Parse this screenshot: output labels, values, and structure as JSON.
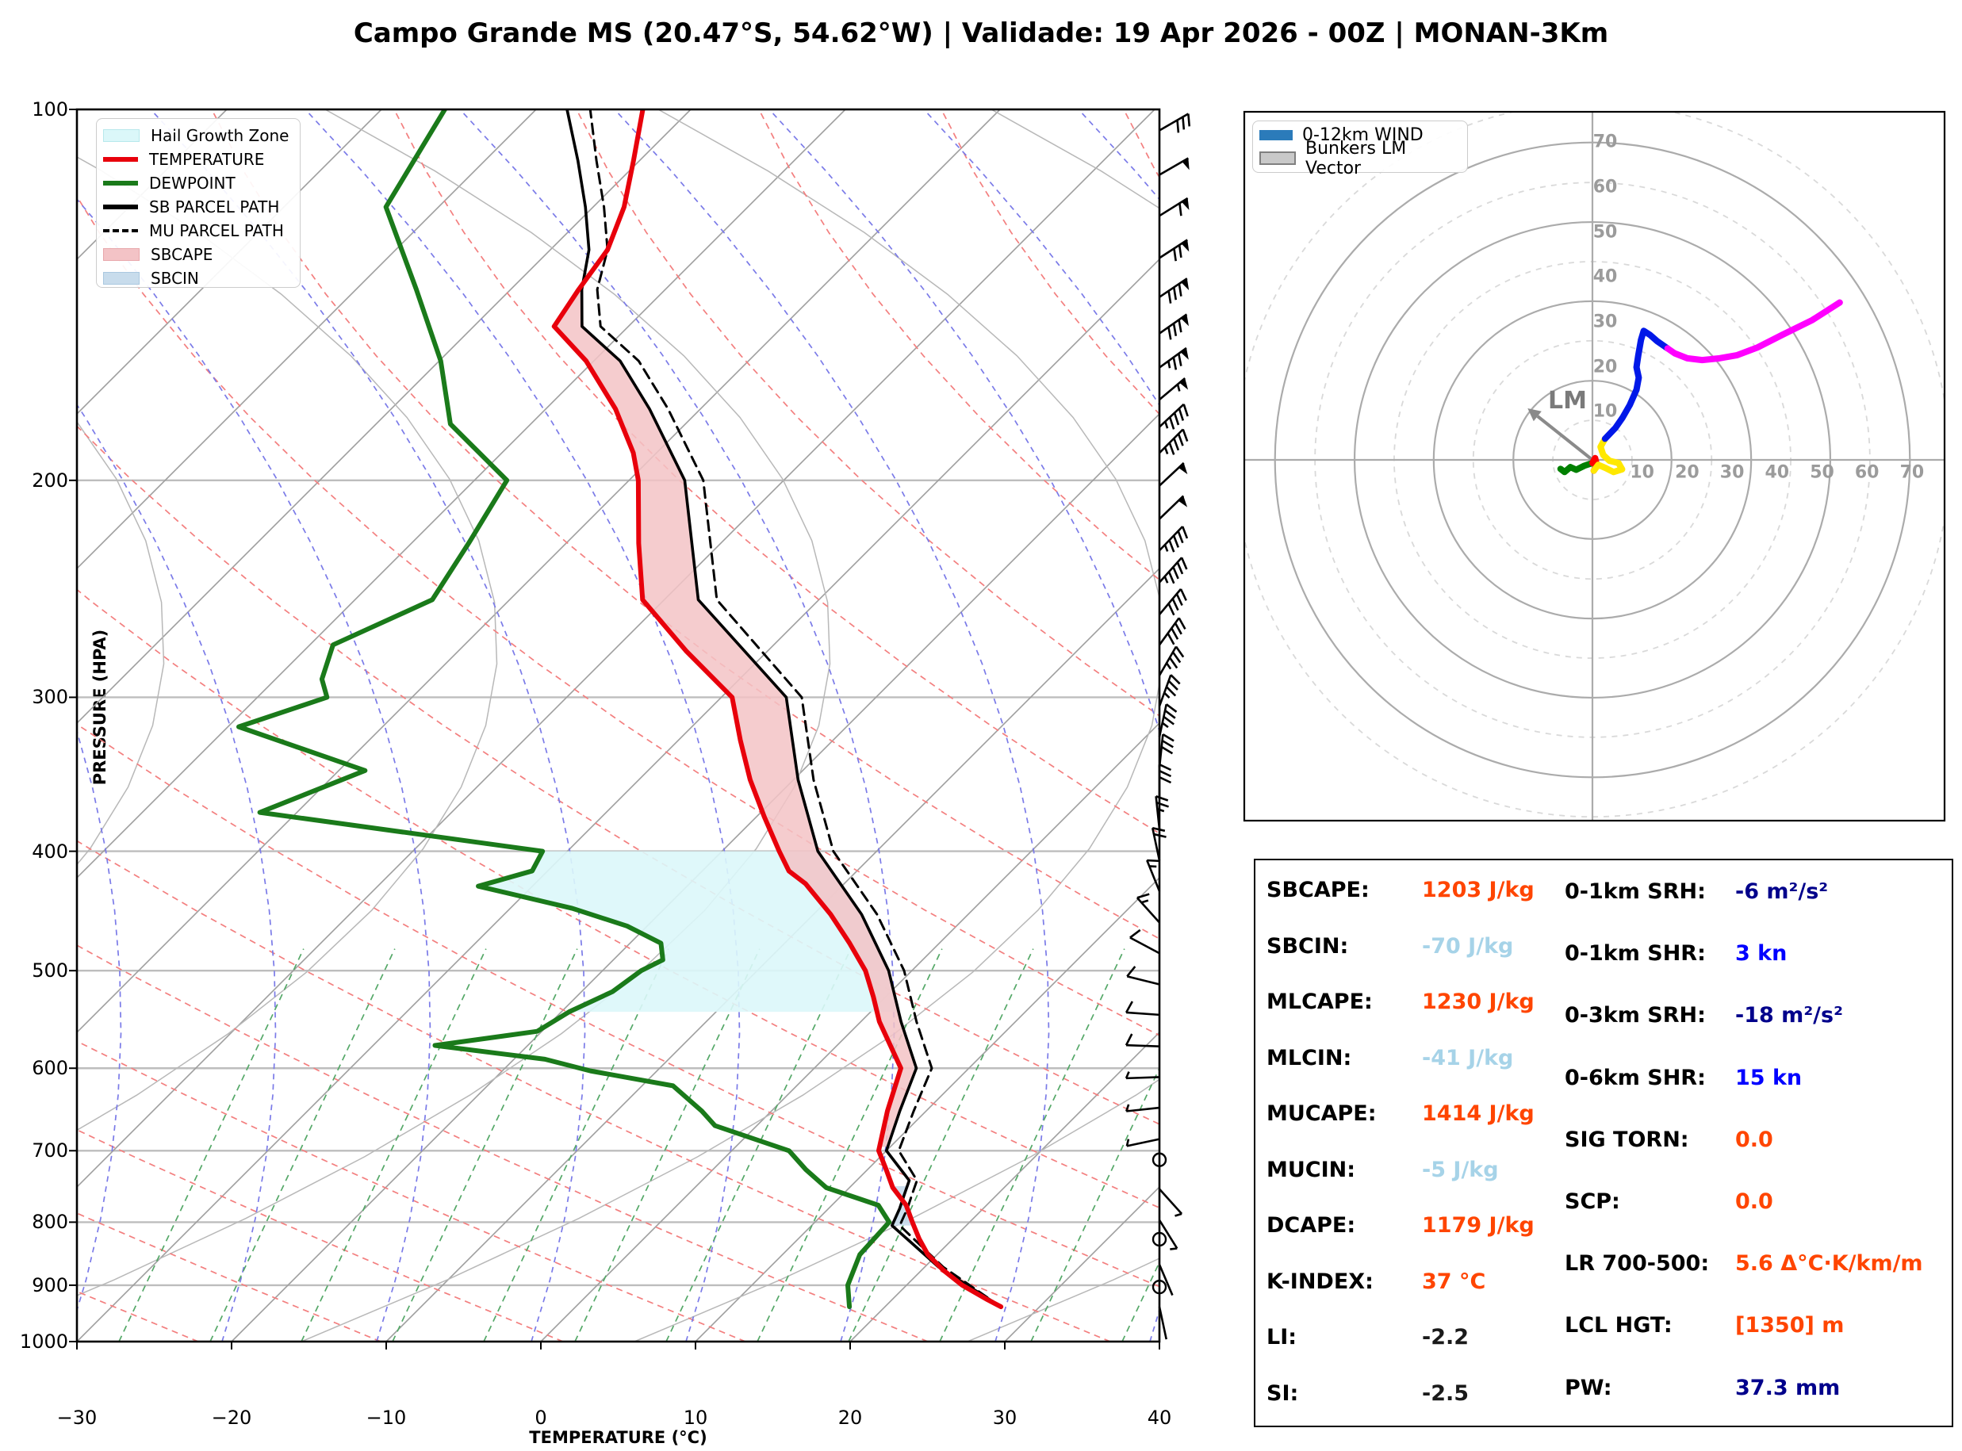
{
  "chart_data": {
    "type": "skewt-sounding",
    "title": "Campo Grande MS (20.47°S, 54.62°W) | Validade: 19 Apr 2026 - 00Z | MONAN-3Km",
    "skewt": {
      "xlabel": "TEMPERATURE (°C)",
      "ylabel": "PRESSURE (HPA)",
      "xlim": [
        -30,
        40
      ],
      "pressure_ticks": [
        100,
        200,
        300,
        400,
        500,
        600,
        700,
        800,
        900,
        1000
      ],
      "temp_ticks": [
        -30,
        -20,
        -10,
        0,
        10,
        20,
        30,
        40
      ],
      "legend": [
        {
          "label": "Hail Growth Zone",
          "type": "patch",
          "color": "#dbf7f9",
          "border": "#b7e8ec"
        },
        {
          "label": "TEMPERATURE",
          "type": "line",
          "color": "#e8000b"
        },
        {
          "label": "DEWPOINT",
          "type": "line",
          "color": "#1a7a1a"
        },
        {
          "label": "SB PARCEL PATH",
          "type": "line",
          "color": "#000000"
        },
        {
          "label": "MU PARCEL PATH",
          "type": "dash",
          "color": "#000000"
        },
        {
          "label": "SBCAPE",
          "type": "patch",
          "color": "#f3c3c6",
          "border": "#e8a7ab"
        },
        {
          "label": "SBCIN",
          "type": "patch",
          "color": "#c8dcec",
          "border": "#aac8e0"
        }
      ],
      "temperature_profile": [
        [
          937,
          27.5
        ],
        [
          925,
          26.2
        ],
        [
          900,
          23.6
        ],
        [
          875,
          21.4
        ],
        [
          850,
          19.4
        ],
        [
          825,
          17.8
        ],
        [
          800,
          16.3
        ],
        [
          775,
          14.8
        ],
        [
          750,
          12.8
        ],
        [
          725,
          11.2
        ],
        [
          700,
          9.5
        ],
        [
          650,
          7.5
        ],
        [
          600,
          5.6
        ],
        [
          550,
          1.2
        ],
        [
          525,
          -0.8
        ],
        [
          500,
          -3.0
        ],
        [
          475,
          -5.8
        ],
        [
          450,
          -8.9
        ],
        [
          425,
          -12.5
        ],
        [
          415,
          -14.4
        ],
        [
          400,
          -16.3
        ],
        [
          375,
          -19.5
        ],
        [
          350,
          -22.8
        ],
        [
          325,
          -26.0
        ],
        [
          300,
          -29.3
        ],
        [
          275,
          -35.3
        ],
        [
          250,
          -41.4
        ],
        [
          225,
          -45.3
        ],
        [
          200,
          -49.4
        ],
        [
          190,
          -51.5
        ],
        [
          175,
          -55.5
        ],
        [
          160,
          -60.5
        ],
        [
          150,
          -64.8
        ],
        [
          140,
          -65.6
        ],
        [
          130,
          -66.3
        ],
        [
          120,
          -68.0
        ],
        [
          110,
          -70.4
        ],
        [
          100,
          -73.1
        ]
      ],
      "dewpoint_profile": [
        [
          937,
          17.7
        ],
        [
          900,
          16.2
        ],
        [
          850,
          15.0
        ],
        [
          800,
          14.8
        ],
        [
          775,
          13.0
        ],
        [
          750,
          8.5
        ],
        [
          725,
          6.0
        ],
        [
          700,
          3.7
        ],
        [
          668,
          -2.7
        ],
        [
          650,
          -4.5
        ],
        [
          620,
          -8.0
        ],
        [
          603,
          -14.3
        ],
        [
          590,
          -18.0
        ],
        [
          575,
          -26.0
        ],
        [
          560,
          -20.3
        ],
        [
          540,
          -19.5
        ],
        [
          520,
          -18.0
        ],
        [
          500,
          -17.5
        ],
        [
          490,
          -16.8
        ],
        [
          475,
          -18.0
        ],
        [
          460,
          -21.3
        ],
        [
          445,
          -26.0
        ],
        [
          427,
          -33.5
        ],
        [
          415,
          -31.0
        ],
        [
          400,
          -31.6
        ],
        [
          372,
          -52.4
        ],
        [
          344,
          -48.3
        ],
        [
          317,
          -59.3
        ],
        [
          300,
          -55.5
        ],
        [
          290,
          -57.0
        ],
        [
          272,
          -58.5
        ],
        [
          250,
          -55.0
        ],
        [
          225,
          -56.3
        ],
        [
          200,
          -57.9
        ],
        [
          180,
          -65.2
        ],
        [
          160,
          -69.9
        ],
        [
          140,
          -76.1
        ],
        [
          120,
          -83.4
        ],
        [
          100,
          -85.9
        ]
      ],
      "sb_parcel": [
        [
          937,
          27.5
        ],
        [
          870,
          20.9
        ],
        [
          805,
          15.2
        ],
        [
          780,
          14.6
        ],
        [
          760,
          14.0
        ],
        [
          740,
          13.4
        ],
        [
          700,
          10.0
        ],
        [
          650,
          8.3
        ],
        [
          600,
          6.6
        ],
        [
          550,
          2.6
        ],
        [
          500,
          -1.5
        ],
        [
          450,
          -6.9
        ],
        [
          400,
          -13.8
        ],
        [
          350,
          -19.7
        ],
        [
          300,
          -25.8
        ],
        [
          250,
          -37.8
        ],
        [
          200,
          -46.4
        ],
        [
          175,
          -53.3
        ],
        [
          160,
          -58.3
        ],
        [
          150,
          -63.0
        ],
        [
          140,
          -65.4
        ],
        [
          130,
          -67.5
        ],
        [
          120,
          -70.5
        ],
        [
          110,
          -74.0
        ],
        [
          100,
          -78.0
        ]
      ],
      "mu_parcel": [
        [
          937,
          27.5
        ],
        [
          870,
          21.2
        ],
        [
          805,
          15.7
        ],
        [
          780,
          15.1
        ],
        [
          760,
          14.5
        ],
        [
          740,
          13.9
        ],
        [
          700,
          10.8
        ],
        [
          650,
          9.2
        ],
        [
          600,
          7.6
        ],
        [
          550,
          3.6
        ],
        [
          500,
          -0.5
        ],
        [
          450,
          -5.9
        ],
        [
          400,
          -12.8
        ],
        [
          350,
          -18.7
        ],
        [
          300,
          -24.8
        ],
        [
          250,
          -36.6
        ],
        [
          200,
          -45.2
        ],
        [
          175,
          -52.1
        ],
        [
          160,
          -57.1
        ],
        [
          150,
          -61.8
        ],
        [
          140,
          -64.4
        ],
        [
          130,
          -66.3
        ],
        [
          120,
          -69.3
        ],
        [
          110,
          -72.8
        ],
        [
          100,
          -76.5
        ]
      ],
      "hail_zone": {
        "p_top": 400,
        "p_bottom": 540
      },
      "cape_layer": {
        "p_bottom": 695,
        "p_top": 139
      },
      "cin_layer": {
        "p_bottom": 805,
        "p_top": 748
      },
      "wind_barbs": [
        [
          104,
          30,
          60
        ],
        [
          113,
          50,
          60
        ],
        [
          122,
          60,
          58
        ],
        [
          132,
          70,
          57
        ],
        [
          142,
          80,
          56
        ],
        [
          152,
          80,
          55
        ],
        [
          162,
          75,
          54
        ],
        [
          172,
          55,
          50
        ],
        [
          181,
          45,
          47
        ],
        [
          190,
          45,
          45
        ],
        [
          202,
          50,
          47
        ],
        [
          215,
          50,
          46
        ],
        [
          228,
          45,
          44
        ],
        [
          242,
          45,
          42
        ],
        [
          257,
          40,
          40
        ],
        [
          272,
          40,
          36
        ],
        [
          288,
          35,
          30
        ],
        [
          305,
          35,
          20
        ],
        [
          323,
          35,
          12
        ],
        [
          342,
          30,
          6
        ],
        [
          362,
          30,
          0
        ],
        [
          384,
          25,
          -6
        ],
        [
          407,
          20,
          -12
        ],
        [
          431,
          15,
          -22
        ],
        [
          457,
          15,
          -42
        ],
        [
          484,
          12,
          -62
        ],
        [
          513,
          10,
          -76
        ],
        [
          543,
          10,
          -86
        ],
        [
          576,
          10,
          -88
        ],
        [
          610,
          8,
          -92
        ],
        [
          646,
          7,
          -96
        ],
        [
          685,
          5,
          -102
        ],
        [
          712,
          0,
          0
        ],
        [
          752,
          7,
          138
        ],
        [
          797,
          7,
          148
        ],
        [
          826,
          0,
          0
        ],
        [
          866,
          4,
          157
        ],
        [
          903,
          0,
          0
        ],
        [
          937,
          3,
          168
        ]
      ],
      "colors": {
        "temperature": "#e8000b",
        "dewpoint": "#1a7a1a",
        "parcel": "#000000",
        "cape_fill": "#f3c3c6",
        "cin_fill": "#c8dcec",
        "hail_fill": "#dbf7f9",
        "isotherm": "#9e9e9e",
        "isobar": "#bdbdbd",
        "gray_adiabat": "#b8b8b8",
        "dry_adiabat": "#f08080",
        "moist_adiabat": "#7b7bе8",
        "moist_adiabat_fix": "#7b7be8",
        "mixing_ratio": "#55a868"
      }
    },
    "hodograph": {
      "legend": [
        {
          "label": "0-12km WIND",
          "type": "line",
          "color": "#2b7bba"
        },
        {
          "label": "Bunkers LM Vector",
          "type": "patch",
          "color": "#c9c9c9",
          "border": "#808080"
        }
      ],
      "ring_labels": [
        10,
        20,
        30,
        40,
        50,
        60,
        70
      ],
      "rings_solid_kt": [
        17.6,
        35.3,
        52.9,
        70.6
      ],
      "rings_dashed_kt": [
        8.8,
        26.5,
        44.1,
        61.7,
        79.4
      ],
      "lm_label": "LM",
      "lm_vector": {
        "u": -12.2,
        "v": 9.7
      },
      "segments": [
        {
          "color": "#008000",
          "points": [
            [
              -7.1,
              -2.0
            ],
            [
              -6.2,
              -2.7
            ],
            [
              -4.9,
              -1.6
            ],
            [
              -3.6,
              -2.2
            ],
            [
              -1.8,
              -1.3
            ],
            [
              0,
              -0.7
            ]
          ]
        },
        {
          "color": "#ff0000",
          "points": [
            [
              0,
              -0.7
            ],
            [
              0.6,
              0.4
            ],
            [
              1.0,
              -1.3
            ],
            [
              0.3,
              -2.4
            ]
          ]
        },
        {
          "color": "#ffe800",
          "points": [
            [
              0.3,
              -2.4
            ],
            [
              1.3,
              -1.1
            ],
            [
              2.9,
              -1.8
            ],
            [
              4.7,
              -2.7
            ],
            [
              6.6,
              -2.1
            ],
            [
              5.8,
              -0.7
            ],
            [
              3.8,
              -0.2
            ],
            [
              2.4,
              1.1
            ],
            [
              1.8,
              2.9
            ],
            [
              2.8,
              4.7
            ]
          ]
        },
        {
          "color": "#0018e8",
          "points": [
            [
              2.8,
              4.7
            ],
            [
              5.1,
              7.1
            ],
            [
              6.7,
              9.4
            ],
            [
              8.3,
              12.2
            ],
            [
              9.8,
              15.6
            ],
            [
              10.3,
              18.3
            ],
            [
              9.8,
              20.6
            ],
            [
              10.2,
              23.3
            ],
            [
              10.8,
              26.7
            ],
            [
              11.4,
              28.7
            ],
            [
              12.8,
              27.8
            ],
            [
              14.4,
              26.4
            ],
            [
              16.7,
              24.8
            ]
          ]
        },
        {
          "color": "#ff00ff",
          "points": [
            [
              16.7,
              24.8
            ],
            [
              18.3,
              23.7
            ],
            [
              21.1,
              22.6
            ],
            [
              24.4,
              22.2
            ],
            [
              28.3,
              22.6
            ],
            [
              32.2,
              23.3
            ],
            [
              36.7,
              25.0
            ],
            [
              42.2,
              27.8
            ],
            [
              48.9,
              31.1
            ],
            [
              55.0,
              35.0
            ]
          ]
        }
      ]
    },
    "stats": {
      "left": [
        {
          "label": "SBCAPE:",
          "value": "1203 J/kg",
          "color": "#ff4500"
        },
        {
          "label": "SBCIN:",
          "value": "-70 J/kg",
          "color": "#a6d3e8"
        },
        {
          "label": "MLCAPE:",
          "value": "1230 J/kg",
          "color": "#ff4500"
        },
        {
          "label": "MLCIN:",
          "value": "-41 J/kg",
          "color": "#a6d3e8"
        },
        {
          "label": "MUCAPE:",
          "value": "1414 J/kg",
          "color": "#ff4500"
        },
        {
          "label": "MUCIN:",
          "value": "-5 J/kg",
          "color": "#a6d3e8"
        },
        {
          "label": "DCAPE:",
          "value": "1179 J/kg",
          "color": "#ff4500"
        },
        {
          "label": "K-INDEX:",
          "value": "37 °C",
          "color": "#ff4500"
        },
        {
          "label": "LI:",
          "value": "-2.2",
          "color": "#1a1a1a"
        },
        {
          "label": "SI:",
          "value": "-2.5",
          "color": "#1a1a1a"
        }
      ],
      "right": [
        {
          "label": "0-1km SRH:",
          "value": "-6 m²/s²",
          "color": "#00008b"
        },
        {
          "label": "0-1km SHR:",
          "value": "3 kn",
          "color": "#0000ff"
        },
        {
          "label": "0-3km SRH:",
          "value": "-18 m²/s²",
          "color": "#00008b"
        },
        {
          "label": "0-6km SHR:",
          "value": "15 kn",
          "color": "#0000ff"
        },
        {
          "label": "SIG TORN:",
          "value": "0.0",
          "color": "#ff4500"
        },
        {
          "label": "SCP:",
          "value": "0.0",
          "color": "#ff4500"
        },
        {
          "label": "LR 700-500:",
          "value": "5.6 Δ°C·K/km/m",
          "color": "#ff4500"
        },
        {
          "label": "LCL HGT:",
          "value": "[1350] m",
          "color": "#ff4500"
        },
        {
          "label": "PW:",
          "value": "37.3 mm",
          "color": "#00008b"
        }
      ]
    }
  }
}
